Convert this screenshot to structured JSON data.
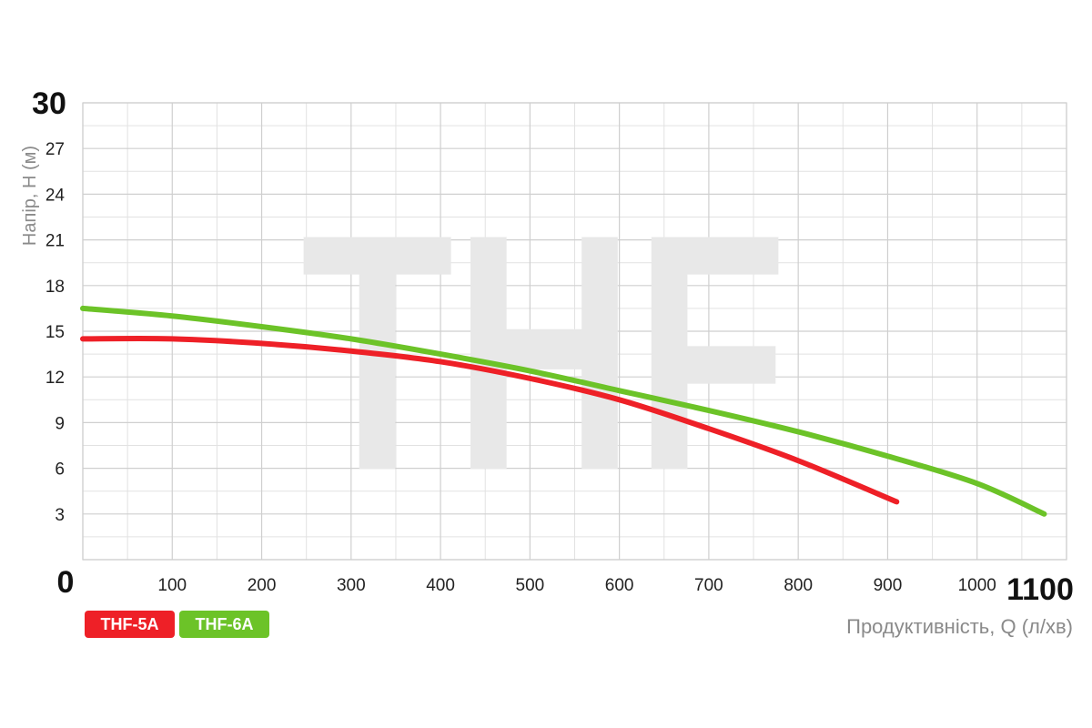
{
  "chart_data": {
    "type": "line",
    "xlabel": "Продуктивність, Q (л/хв)",
    "ylabel": "Напір, Н (м)",
    "xlim": [
      0,
      1100
    ],
    "ylim": [
      0,
      30
    ],
    "x_ticks": [
      "0",
      "100",
      "200",
      "300",
      "400",
      "500",
      "600",
      "700",
      "800",
      "900",
      "1000",
      "1100"
    ],
    "y_ticks": [
      "0",
      "3",
      "6",
      "9",
      "12",
      "15",
      "18",
      "21",
      "24",
      "27",
      "30"
    ],
    "grid": true,
    "watermark": "THF",
    "legend_position": "bottom-left",
    "series": [
      {
        "name": "THF-5A",
        "color": "#ee2027",
        "points": [
          [
            0,
            14.5
          ],
          [
            100,
            14.5
          ],
          [
            200,
            14.2
          ],
          [
            300,
            13.7
          ],
          [
            400,
            13.0
          ],
          [
            500,
            11.9
          ],
          [
            600,
            10.5
          ],
          [
            700,
            8.6
          ],
          [
            800,
            6.5
          ],
          [
            910,
            3.8
          ]
        ]
      },
      {
        "name": "THF-6A",
        "color": "#6cc328",
        "points": [
          [
            0,
            16.5
          ],
          [
            100,
            16.0
          ],
          [
            200,
            15.3
          ],
          [
            300,
            14.5
          ],
          [
            400,
            13.5
          ],
          [
            500,
            12.4
          ],
          [
            600,
            11.1
          ],
          [
            700,
            9.8
          ],
          [
            800,
            8.4
          ],
          [
            900,
            6.8
          ],
          [
            1000,
            5.0
          ],
          [
            1075,
            3.0
          ]
        ]
      }
    ]
  }
}
